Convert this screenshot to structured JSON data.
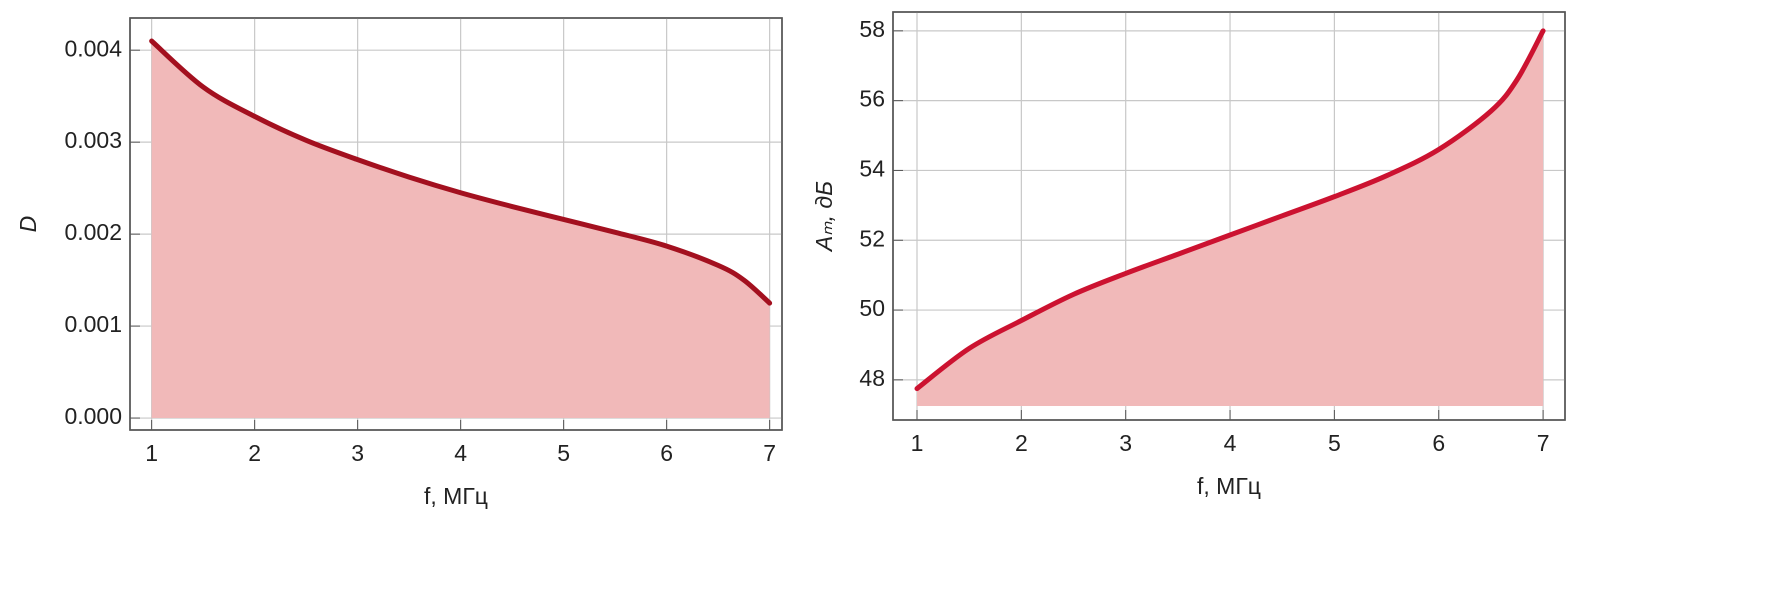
{
  "chart_data": [
    {
      "type": "line",
      "xlabel": "f, МГц",
      "ylabel": "D",
      "x": [
        1,
        1.5,
        2,
        2.5,
        3,
        3.5,
        4,
        4.5,
        5,
        5.5,
        6,
        6.5,
        6.75,
        7
      ],
      "series": [
        {
          "color": "#a3101f",
          "values": [
            0.0041,
            0.0036,
            0.00328,
            0.00302,
            0.00281,
            0.00262,
            0.00245,
            0.0023,
            0.00216,
            0.00202,
            0.00187,
            0.00166,
            0.0015,
            0.00125
          ]
        }
      ],
      "fill_color": "#f1b9b9",
      "fill_base": 0,
      "xlim": [
        0.79,
        7.12
      ],
      "ylim": [
        -0.00013,
        0.00435
      ],
      "xticks": [
        1,
        2,
        3,
        4,
        5,
        6,
        7
      ],
      "yticks": [
        {
          "value": 0,
          "label": "0.000"
        },
        0.001,
        0.002,
        0.003,
        0.004
      ],
      "grid": true
    },
    {
      "type": "line",
      "xlabel": "f, МГц",
      "ylabel": "Aₘ, дБ",
      "x": [
        1,
        1.5,
        2,
        2.5,
        3,
        3.5,
        4,
        4.5,
        5,
        5.5,
        6,
        6.5,
        6.75,
        7
      ],
      "series": [
        {
          "color": "#cc1230",
          "values": [
            47.75,
            48.9,
            49.7,
            50.45,
            51.05,
            51.6,
            52.15,
            52.7,
            53.25,
            53.85,
            54.6,
            55.7,
            56.6,
            58.0
          ]
        }
      ],
      "fill_color": "#f1b9b9",
      "fill_base": 47.25,
      "xlim": [
        0.77,
        7.21
      ],
      "ylim": [
        46.85,
        58.54
      ],
      "xticks": [
        1,
        2,
        3,
        4,
        5,
        6,
        7
      ],
      "yticks": [
        48,
        50,
        52,
        54,
        56,
        58
      ],
      "grid": true
    }
  ]
}
